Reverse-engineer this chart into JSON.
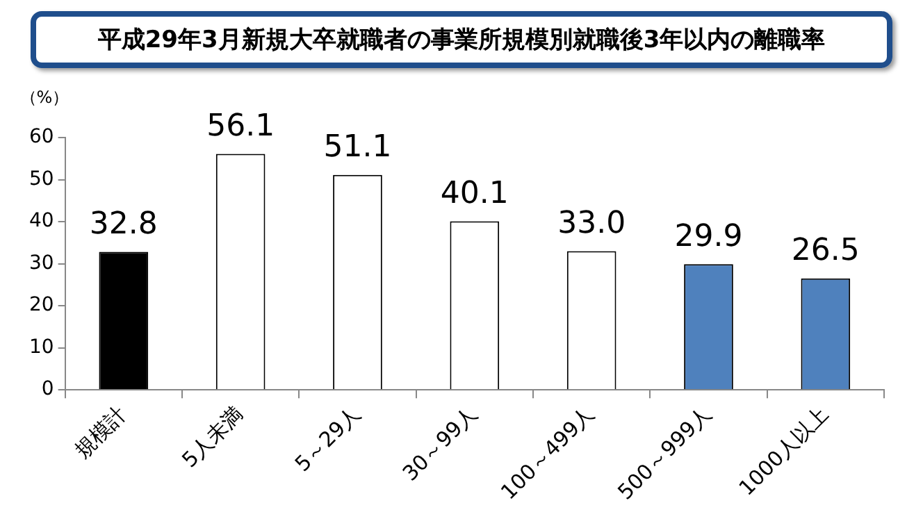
{
  "chart_data": {
    "type": "bar",
    "title": "平成29年3月新規大卒就職者の事業所規模別就職後3年以内の離職率",
    "ylabel": "（%）",
    "categories": [
      "規模計",
      "5人未満",
      "5～29人",
      "30～99人",
      "100～499人",
      "500～999人",
      "1000人以上"
    ],
    "values": [
      32.8,
      56.1,
      51.1,
      40.1,
      33.0,
      29.9,
      26.5
    ],
    "colors": [
      "#000000",
      "#ffffff",
      "#ffffff",
      "#ffffff",
      "#ffffff",
      "#4f81bd",
      "#4f81bd"
    ],
    "value_labels": [
      "32.8",
      "56.1",
      "51.1",
      "40.1",
      "33.0",
      "29.9",
      "26.5"
    ],
    "ylim": [
      0,
      60
    ],
    "yticks": [
      0,
      10,
      20,
      30,
      40,
      50,
      60
    ],
    "grid": false,
    "legend": false
  }
}
